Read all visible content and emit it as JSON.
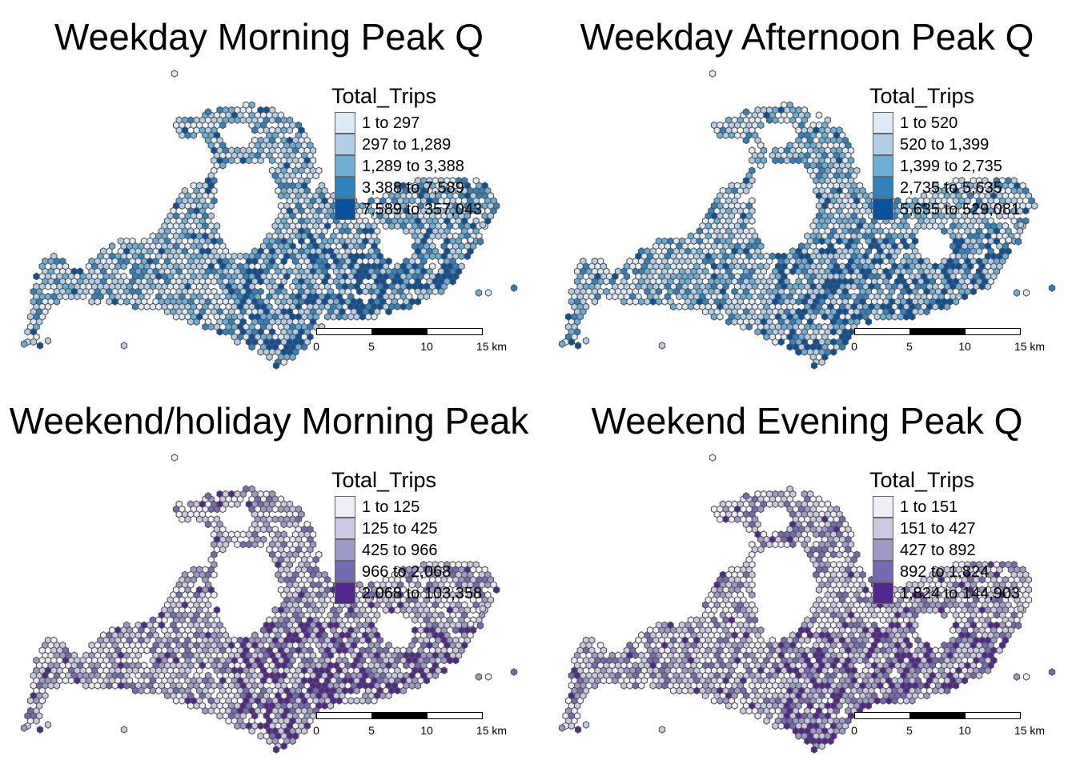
{
  "panels": [
    {
      "title": "Weekday Morning Peak Q",
      "legend": {
        "title": "Total_Trips",
        "items": [
          {
            "label": "1 to 297",
            "color": "#deebf7"
          },
          {
            "label": "297 to 1,289",
            "color": "#b3cfe8"
          },
          {
            "label": "1,289 to 3,388",
            "color": "#6baed6"
          },
          {
            "label": "3,388 to 7,589",
            "color": "#3182bd"
          },
          {
            "label": "7,589 to 357,043",
            "color": "#08519c"
          }
        ]
      },
      "scale": {
        "ticks": [
          "0",
          "5",
          "10",
          "15 km"
        ]
      }
    },
    {
      "title": "Weekday Afternoon Peak Q",
      "legend": {
        "title": "Total_Trips",
        "items": [
          {
            "label": "1 to 520",
            "color": "#deebf7"
          },
          {
            "label": "520 to 1,399",
            "color": "#b3cfe8"
          },
          {
            "label": "1,399 to 2,735",
            "color": "#6baed6"
          },
          {
            "label": "2,735 to 5,635",
            "color": "#3182bd"
          },
          {
            "label": "5,635 to 529,081",
            "color": "#08519c"
          }
        ]
      },
      "scale": {
        "ticks": [
          "0",
          "5",
          "10",
          "15 km"
        ]
      }
    },
    {
      "title": "Weekend/holiday Morning Peak",
      "legend": {
        "title": "Total_Trips",
        "items": [
          {
            "label": "1 to 125",
            "color": "#efedf5"
          },
          {
            "label": "125 to 425",
            "color": "#cbc9e2"
          },
          {
            "label": "425 to 966",
            "color": "#9e9ac8"
          },
          {
            "label": "966 to 2,068",
            "color": "#756bb1"
          },
          {
            "label": "2,068 to 103,358",
            "color": "#54278f"
          }
        ]
      },
      "scale": {
        "ticks": [
          "0",
          "5",
          "10",
          "15 km"
        ]
      }
    },
    {
      "title": "Weekend Evening Peak Q",
      "legend": {
        "title": "Total_Trips",
        "items": [
          {
            "label": "1 to 151",
            "color": "#efedf5"
          },
          {
            "label": "151 to 427",
            "color": "#cbc9e2"
          },
          {
            "label": "427 to 892",
            "color": "#9e9ac8"
          },
          {
            "label": "892 to 1,824",
            "color": "#756bb1"
          },
          {
            "label": "1,824 to 144,903",
            "color": "#54278f"
          }
        ]
      },
      "scale": {
        "ticks": [
          "0",
          "5",
          "10",
          "15 km"
        ]
      }
    }
  ]
}
